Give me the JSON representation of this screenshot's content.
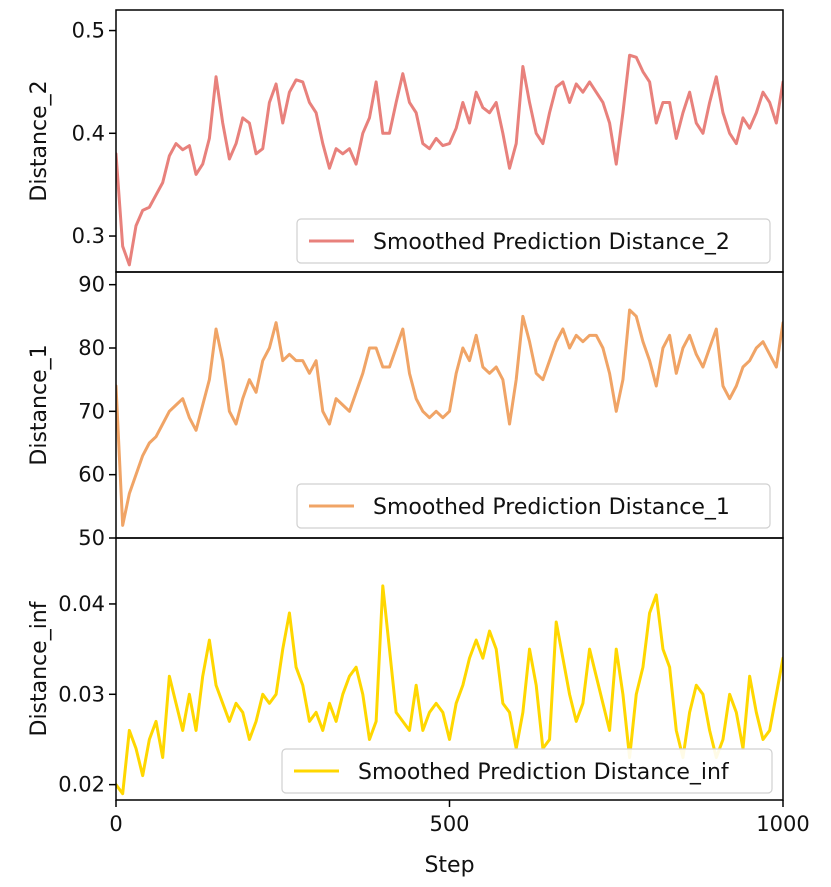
{
  "chart_data": [
    {
      "type": "line",
      "ylabel": "Distance_2",
      "xlabel": "",
      "xlim": [
        0,
        1000
      ],
      "ylim": [
        0.265,
        0.52
      ],
      "yticks": [
        0.3,
        0.4,
        0.5
      ],
      "ytick_labels": [
        "0.3",
        "0.4",
        "0.5"
      ],
      "legend_position": "lower-right",
      "series": [
        {
          "name": "Smoothed Prediction Distance_2",
          "color": "#e8817c",
          "x": [
            0,
            10,
            20,
            30,
            40,
            50,
            60,
            70,
            80,
            90,
            100,
            110,
            120,
            130,
            140,
            150,
            160,
            170,
            180,
            190,
            200,
            210,
            220,
            230,
            240,
            250,
            260,
            270,
            280,
            290,
            300,
            310,
            320,
            330,
            340,
            350,
            360,
            370,
            380,
            390,
            400,
            410,
            420,
            430,
            440,
            450,
            460,
            470,
            480,
            490,
            500,
            510,
            520,
            530,
            540,
            550,
            560,
            570,
            580,
            590,
            600,
            610,
            620,
            630,
            640,
            650,
            660,
            670,
            680,
            690,
            700,
            710,
            720,
            730,
            740,
            750,
            760,
            770,
            780,
            790,
            800,
            810,
            820,
            830,
            840,
            850,
            860,
            870,
            880,
            890,
            900,
            910,
            920,
            930,
            940,
            950,
            960,
            970,
            980,
            990,
            1000
          ],
          "values": [
            0.38,
            0.29,
            0.272,
            0.31,
            0.325,
            0.328,
            0.34,
            0.352,
            0.378,
            0.39,
            0.384,
            0.388,
            0.36,
            0.37,
            0.395,
            0.455,
            0.41,
            0.375,
            0.39,
            0.415,
            0.41,
            0.38,
            0.385,
            0.43,
            0.448,
            0.41,
            0.44,
            0.452,
            0.45,
            0.43,
            0.42,
            0.39,
            0.366,
            0.385,
            0.38,
            0.385,
            0.37,
            0.4,
            0.415,
            0.45,
            0.4,
            0.4,
            0.43,
            0.458,
            0.43,
            0.42,
            0.39,
            0.385,
            0.395,
            0.388,
            0.39,
            0.405,
            0.43,
            0.41,
            0.44,
            0.425,
            0.42,
            0.43,
            0.4,
            0.366,
            0.39,
            0.465,
            0.43,
            0.4,
            0.39,
            0.42,
            0.445,
            0.45,
            0.43,
            0.448,
            0.44,
            0.45,
            0.44,
            0.43,
            0.41,
            0.37,
            0.42,
            0.476,
            0.474,
            0.46,
            0.45,
            0.41,
            0.43,
            0.43,
            0.395,
            0.42,
            0.44,
            0.41,
            0.4,
            0.43,
            0.455,
            0.42,
            0.4,
            0.39,
            0.415,
            0.405,
            0.42,
            0.44,
            0.43,
            0.41,
            0.45
          ]
        }
      ]
    },
    {
      "type": "line",
      "ylabel": "Distance_1",
      "xlabel": "",
      "xlim": [
        0,
        1000
      ],
      "ylim": [
        50,
        92
      ],
      "yticks": [
        50,
        60,
        70,
        80,
        90
      ],
      "ytick_labels": [
        "50",
        "60",
        "70",
        "80",
        "90"
      ],
      "legend_position": "lower-right",
      "series": [
        {
          "name": "Smoothed Prediction Distance_1",
          "color": "#f0a466",
          "x": [
            0,
            10,
            20,
            30,
            40,
            50,
            60,
            70,
            80,
            90,
            100,
            110,
            120,
            130,
            140,
            150,
            160,
            170,
            180,
            190,
            200,
            210,
            220,
            230,
            240,
            250,
            260,
            270,
            280,
            290,
            300,
            310,
            320,
            330,
            340,
            350,
            360,
            370,
            380,
            390,
            400,
            410,
            420,
            430,
            440,
            450,
            460,
            470,
            480,
            490,
            500,
            510,
            520,
            530,
            540,
            550,
            560,
            570,
            580,
            590,
            600,
            610,
            620,
            630,
            640,
            650,
            660,
            670,
            680,
            690,
            700,
            710,
            720,
            730,
            740,
            750,
            760,
            770,
            780,
            790,
            800,
            810,
            820,
            830,
            840,
            850,
            860,
            870,
            880,
            890,
            900,
            910,
            920,
            930,
            940,
            950,
            960,
            970,
            980,
            990,
            1000
          ],
          "values": [
            74,
            52,
            57,
            60,
            63,
            65,
            66,
            68,
            70,
            71,
            72,
            69,
            67,
            71,
            75,
            83,
            78,
            70,
            68,
            72,
            75,
            73,
            78,
            80,
            84,
            78,
            79,
            78,
            78,
            76,
            78,
            70,
            68,
            72,
            71,
            70,
            73,
            76,
            80,
            80,
            77,
            77,
            80,
            83,
            76,
            72,
            70,
            69,
            70,
            69,
            70,
            76,
            80,
            78,
            82,
            77,
            76,
            77,
            75,
            68,
            75,
            85,
            81,
            76,
            75,
            78,
            81,
            83,
            80,
            82,
            81,
            82,
            82,
            80,
            76,
            70,
            75,
            86,
            85,
            81,
            78,
            74,
            80,
            82,
            76,
            80,
            82,
            79,
            77,
            80,
            83,
            74,
            72,
            74,
            77,
            78,
            80,
            81,
            79,
            77,
            84
          ]
        }
      ]
    },
    {
      "type": "line",
      "ylabel": "Distance_inf",
      "xlabel": "Step",
      "xlim": [
        0,
        1000
      ],
      "ylim": [
        0.0183,
        0.0473
      ],
      "xticks": [
        0,
        500,
        1000
      ],
      "xtick_labels": [
        "0",
        "500",
        "1000"
      ],
      "yticks": [
        0.02,
        0.03,
        0.04
      ],
      "ytick_labels": [
        "0.02",
        "0.03",
        "0.04"
      ],
      "legend_position": "lower-right",
      "series": [
        {
          "name": "Smoothed Prediction Distance_inf",
          "color": "#ffd700",
          "x": [
            0,
            10,
            20,
            30,
            40,
            50,
            60,
            70,
            80,
            90,
            100,
            110,
            120,
            130,
            140,
            150,
            160,
            170,
            180,
            190,
            200,
            210,
            220,
            230,
            240,
            250,
            260,
            270,
            280,
            290,
            300,
            310,
            320,
            330,
            340,
            350,
            360,
            370,
            380,
            390,
            400,
            410,
            420,
            430,
            440,
            450,
            460,
            470,
            480,
            490,
            500,
            510,
            520,
            530,
            540,
            550,
            560,
            570,
            580,
            590,
            600,
            610,
            620,
            630,
            640,
            650,
            660,
            670,
            680,
            690,
            700,
            710,
            720,
            730,
            740,
            750,
            760,
            770,
            780,
            790,
            800,
            810,
            820,
            830,
            840,
            850,
            860,
            870,
            880,
            890,
            900,
            910,
            920,
            930,
            940,
            950,
            960,
            970,
            980,
            990,
            1000
          ],
          "values": [
            0.02,
            0.019,
            0.026,
            0.024,
            0.021,
            0.025,
            0.027,
            0.023,
            0.032,
            0.029,
            0.026,
            0.03,
            0.026,
            0.032,
            0.036,
            0.031,
            0.029,
            0.027,
            0.029,
            0.028,
            0.025,
            0.027,
            0.03,
            0.029,
            0.03,
            0.035,
            0.039,
            0.033,
            0.031,
            0.027,
            0.028,
            0.026,
            0.029,
            0.027,
            0.03,
            0.032,
            0.033,
            0.03,
            0.025,
            0.027,
            0.042,
            0.035,
            0.028,
            0.027,
            0.026,
            0.031,
            0.026,
            0.028,
            0.029,
            0.028,
            0.025,
            0.029,
            0.031,
            0.034,
            0.036,
            0.034,
            0.037,
            0.035,
            0.029,
            0.028,
            0.024,
            0.028,
            0.035,
            0.031,
            0.024,
            0.025,
            0.038,
            0.034,
            0.03,
            0.027,
            0.029,
            0.035,
            0.032,
            0.029,
            0.026,
            0.035,
            0.03,
            0.023,
            0.03,
            0.033,
            0.039,
            0.041,
            0.035,
            0.033,
            0.026,
            0.023,
            0.028,
            0.031,
            0.03,
            0.026,
            0.023,
            0.025,
            0.03,
            0.028,
            0.024,
            0.032,
            0.028,
            0.025,
            0.026,
            0.03,
            0.034
          ]
        }
      ]
    }
  ]
}
